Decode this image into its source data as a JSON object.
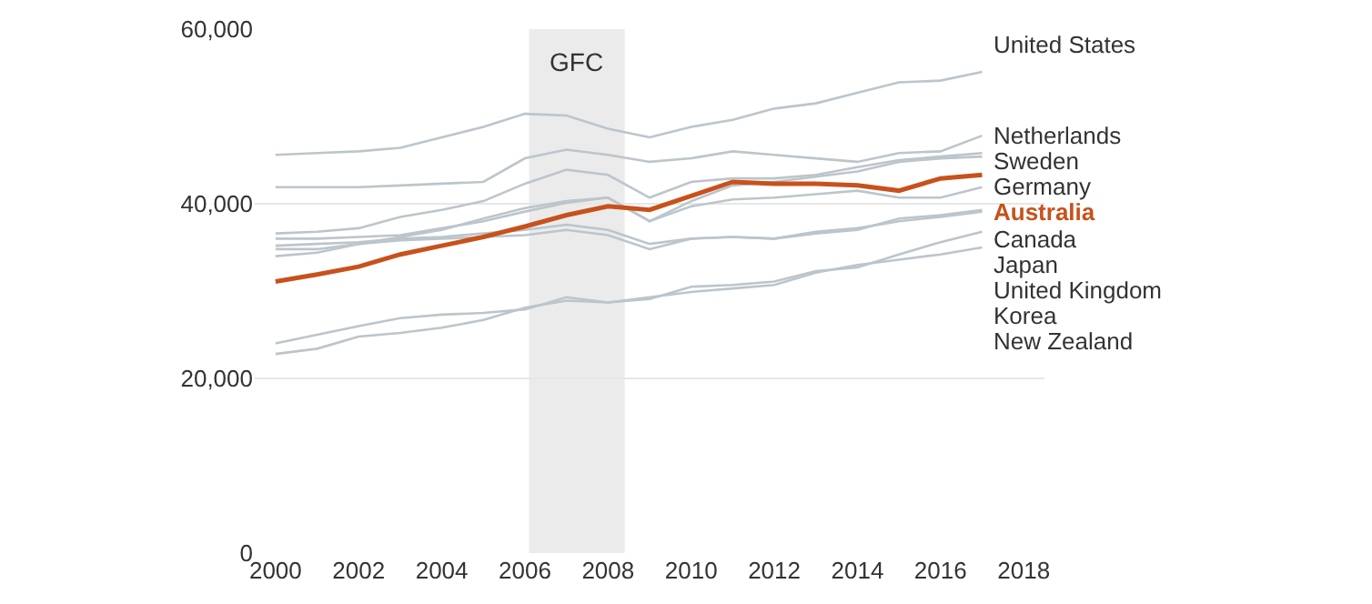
{
  "chart_data": {
    "type": "line",
    "x": [
      2000,
      2001,
      2002,
      2003,
      2004,
      2005,
      2006,
      2007,
      2008,
      2009,
      2010,
      2011,
      2012,
      2013,
      2014,
      2015,
      2016,
      2017
    ],
    "series": [
      {
        "name": "United States",
        "color": "#bcc5cb",
        "values": [
          45600,
          45800,
          46000,
          46400,
          47600,
          48800,
          50300,
          50100,
          48600,
          47600,
          48800,
          49600,
          50900,
          51500,
          52700,
          53900,
          54100,
          55100
        ]
      },
      {
        "name": "Netherlands",
        "color": "#bcc5cb",
        "values": [
          41900,
          41900,
          41900,
          42100,
          42300,
          42500,
          45200,
          46200,
          45600,
          44800,
          45200,
          46000,
          45600,
          45200,
          44800,
          45800,
          46000,
          47800
        ]
      },
      {
        "name": "Sweden",
        "color": "#bcc5cb",
        "values": [
          36600,
          36800,
          37200,
          38500,
          39300,
          40300,
          42300,
          43900,
          43300,
          40700,
          42500,
          42900,
          42900,
          43300,
          44200,
          45000,
          45400,
          45800
        ]
      },
      {
        "name": "Germany",
        "color": "#bcc5cb",
        "values": [
          36000,
          36000,
          36200,
          36400,
          37200,
          38000,
          39100,
          40100,
          40700,
          38000,
          40300,
          42100,
          42500,
          43100,
          43700,
          44800,
          45200,
          45400
        ]
      },
      {
        "name": "Australia",
        "color": "#c8511b",
        "values": [
          31100,
          31900,
          32800,
          34200,
          35200,
          36200,
          37400,
          38700,
          39700,
          39300,
          40900,
          42500,
          42300,
          42300,
          42100,
          41500,
          42900,
          43300
        ]
      },
      {
        "name": "Canada",
        "color": "#bcc5cb",
        "values": [
          34800,
          34800,
          35400,
          36200,
          37000,
          38300,
          39500,
          40300,
          40700,
          38000,
          39700,
          40500,
          40700,
          41100,
          41500,
          40700,
          40700,
          41900
        ]
      },
      {
        "name": "Japan",
        "color": "#bcc5cb",
        "values": [
          35200,
          35400,
          35600,
          36000,
          36200,
          36600,
          37000,
          37600,
          37000,
          35400,
          36000,
          36200,
          36000,
          36600,
          37000,
          38300,
          38700,
          39300
        ]
      },
      {
        "name": "United Kingdom",
        "color": "#bcc5cb",
        "values": [
          34000,
          34400,
          35400,
          35800,
          36000,
          36200,
          36400,
          37000,
          36400,
          34800,
          36000,
          36200,
          36000,
          36800,
          37200,
          38000,
          38500,
          39100
        ]
      },
      {
        "name": "Korea",
        "color": "#bcc5cb",
        "values": [
          24000,
          25000,
          26000,
          26900,
          27300,
          27500,
          27900,
          29300,
          28700,
          29100,
          30500,
          30700,
          31100,
          32300,
          32700,
          34200,
          35600,
          36800
        ]
      },
      {
        "name": "New Zealand",
        "color": "#bcc5cb",
        "values": [
          22800,
          23400,
          24800,
          25200,
          25800,
          26700,
          28100,
          28900,
          28700,
          29300,
          29900,
          30300,
          30700,
          32100,
          33000,
          33600,
          34200,
          35000
        ]
      }
    ],
    "bands": [
      {
        "axis": "x",
        "from": 2006.1,
        "to": 2008.4,
        "label": "GFC",
        "color": "#ebebeb"
      }
    ],
    "xlim": [
      1999.5,
      2018.5
    ],
    "xticks": [
      2000,
      2002,
      2004,
      2006,
      2008,
      2010,
      2012,
      2014,
      2016,
      2018
    ],
    "ylim": [
      0,
      60000
    ],
    "yticks": [
      {
        "value": 0,
        "label": "0"
      },
      {
        "value": 20000,
        "label": "20,000"
      },
      {
        "value": 40000,
        "label": "40,000"
      },
      {
        "value": 60000,
        "label": "60,000"
      }
    ],
    "grid": "y",
    "legend": false,
    "marker": "none",
    "line_style": "solid"
  }
}
